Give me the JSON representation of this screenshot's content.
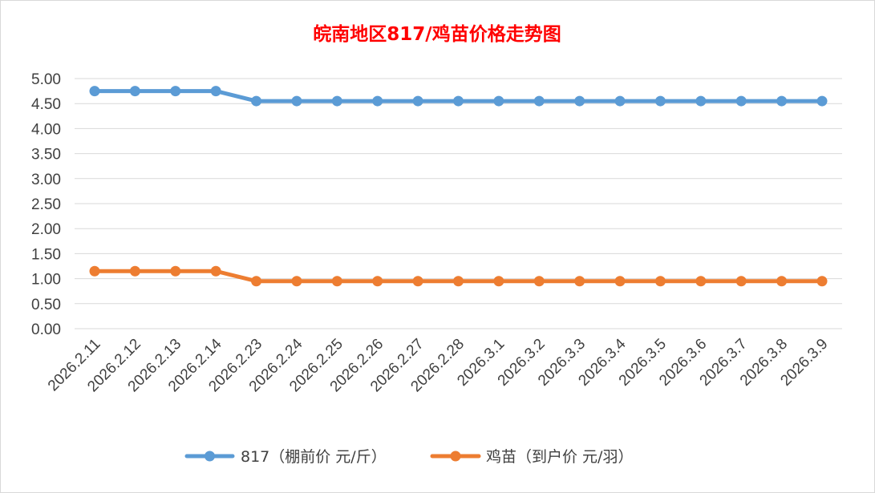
{
  "chart_data": {
    "type": "line",
    "title": "皖南地区817/鸡苗价格走势图",
    "categories": [
      "2026.2.11",
      "2026.2.12",
      "2026.2.13",
      "2026.2.14",
      "2026.2.23",
      "2026.2.24",
      "2026.2.25",
      "2026.2.26",
      "2026.2.27",
      "2026.2.28",
      "2026.3.1",
      "2026.3.2",
      "2026.3.3",
      "2026.3.4",
      "2026.3.5",
      "2026.3.6",
      "2026.3.7",
      "2026.3.8",
      "2026.3.9"
    ],
    "ylim": [
      0,
      5
    ],
    "yticks": [
      "0.00",
      "0.50",
      "1.00",
      "1.50",
      "2.00",
      "2.50",
      "3.00",
      "3.50",
      "4.00",
      "4.50",
      "5.00"
    ],
    "grid": true,
    "legend_position": "bottom",
    "series": [
      {
        "name": "817（棚前价 元/斤）",
        "color": "#5b9bd5",
        "values": [
          4.75,
          4.75,
          4.75,
          4.75,
          4.55,
          4.55,
          4.55,
          4.55,
          4.55,
          4.55,
          4.55,
          4.55,
          4.55,
          4.55,
          4.55,
          4.55,
          4.55,
          4.55,
          4.55
        ]
      },
      {
        "name": "鸡苗（到户价 元/羽）",
        "color": "#ed7d31",
        "values": [
          1.15,
          1.15,
          1.15,
          1.15,
          0.95,
          0.95,
          0.95,
          0.95,
          0.95,
          0.95,
          0.95,
          0.95,
          0.95,
          0.95,
          0.95,
          0.95,
          0.95,
          0.95,
          0.95
        ]
      }
    ]
  }
}
